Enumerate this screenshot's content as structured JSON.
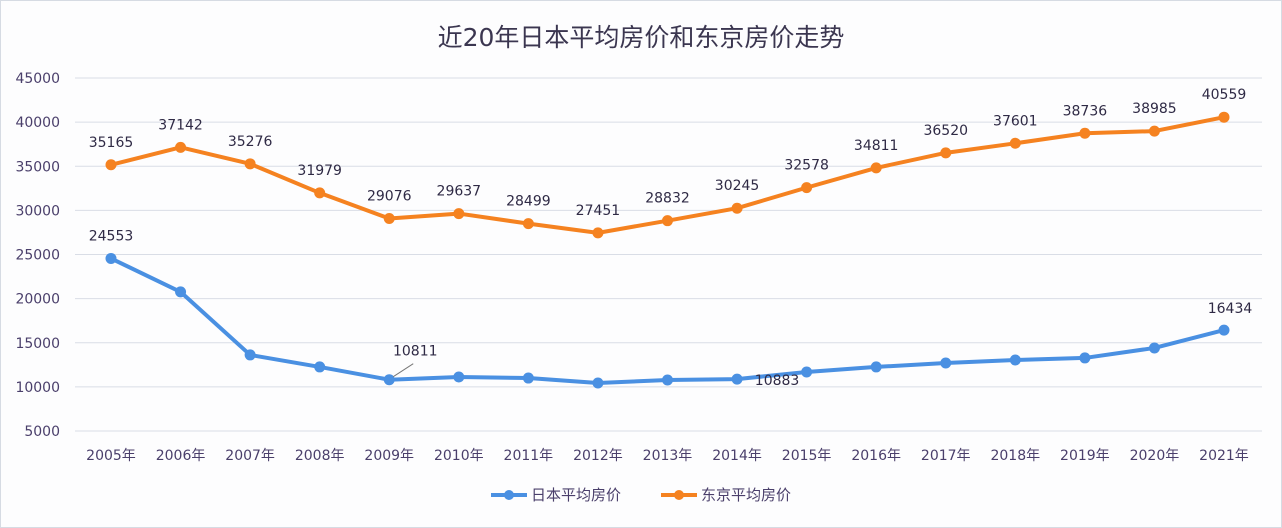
{
  "chart_data": {
    "type": "line",
    "title": "近20年日本平均房价和东京房价走势",
    "xlabel": "",
    "ylabel": "",
    "categories": [
      "2005年",
      "2006年",
      "2007年",
      "2008年",
      "2009年",
      "2010年",
      "2011年",
      "2012年",
      "2013年",
      "2014年",
      "2015年",
      "2016年",
      "2017年",
      "2018年",
      "2019年",
      "2020年",
      "2021年"
    ],
    "ylim": [
      5000,
      45000
    ],
    "yticks": [
      "5000",
      "10000",
      "15000",
      "20000",
      "25000",
      "30000",
      "35000",
      "40000",
      "45000"
    ],
    "grid": true,
    "legend_position": "bottom",
    "series": [
      {
        "name": "日本平均房价",
        "color": "#4a90e2",
        "values": [
          24553,
          20760,
          13620,
          12260,
          10811,
          11120,
          11000,
          10440,
          10780,
          10883,
          11690,
          12260,
          12710,
          13050,
          13280,
          14410,
          16434
        ],
        "labels": [
          "24553",
          null,
          null,
          null,
          "10811",
          null,
          null,
          null,
          null,
          "10883",
          null,
          null,
          null,
          null,
          null,
          null,
          "16434"
        ]
      },
      {
        "name": "东京平均房价",
        "color": "#f58220",
        "values": [
          35165,
          37142,
          35276,
          31979,
          29076,
          29637,
          28499,
          27451,
          28832,
          30245,
          32578,
          34811,
          36520,
          37601,
          38736,
          38985,
          40559
        ],
        "labels": [
          "35165",
          "37142",
          "35276",
          "31979",
          "29076",
          "29637",
          "28499",
          "27451",
          "28832",
          "30245",
          "32578",
          "34811",
          "36520",
          "37601",
          "38736",
          "38985",
          "40559"
        ]
      }
    ]
  }
}
